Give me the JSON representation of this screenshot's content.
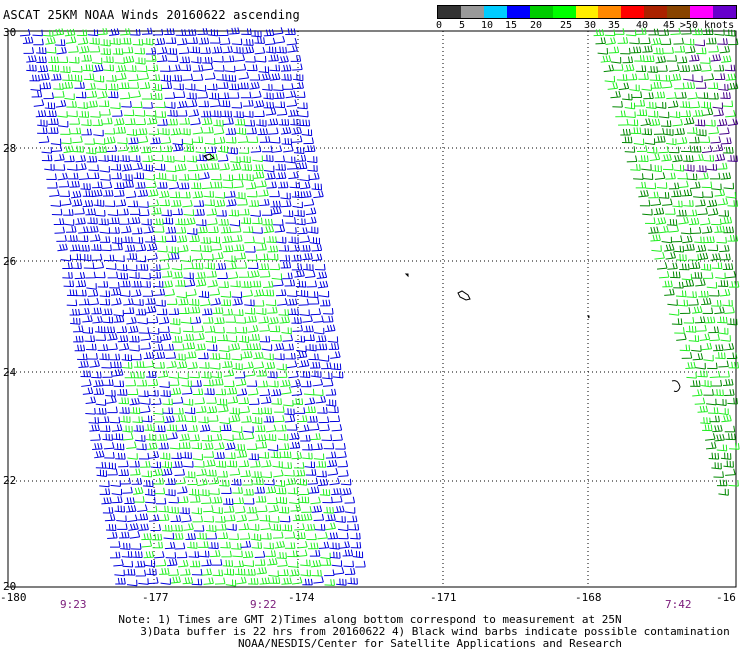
{
  "title": "ASCAT 25KM NOAA Winds 20160622 ascending",
  "colorbar": {
    "labels": [
      "0",
      "5",
      "10",
      "15",
      "20",
      "25",
      "30",
      "35",
      "40",
      "45",
      ">50 knots"
    ],
    "colors": [
      "#333333",
      "#999999",
      "#00ccff",
      "#0000ff",
      "#00cc00",
      "#00ff00",
      "#ffee00",
      "#ff8800",
      "#ff0000",
      "#aa2200",
      "#884400",
      "#ff00ff",
      "#6600cc"
    ]
  },
  "axes": {
    "x_ticks": [
      "-180",
      "-177",
      "-174",
      "-171",
      "-168",
      "-16"
    ],
    "y_ticks": [
      "30",
      "28",
      "26",
      "24",
      "22",
      "20"
    ]
  },
  "times": [
    "9:23",
    "9:22",
    "7:42"
  ],
  "notes": [
    "Note: 1) Times are GMT 2)Times along bottom correspond to measurement at 25N",
    "3)Data buffer is 22 hrs from 20160622 4) Black wind barbs indicate possible contamination",
    "NOAA/NESDIS/Center for Satellite Applications and Research"
  ],
  "barb_colors": {
    "blue": "#0000dd",
    "lightgreen": "#22ee22",
    "darkgreen": "#008800",
    "purple": "#440088",
    "black": "#000000"
  }
}
